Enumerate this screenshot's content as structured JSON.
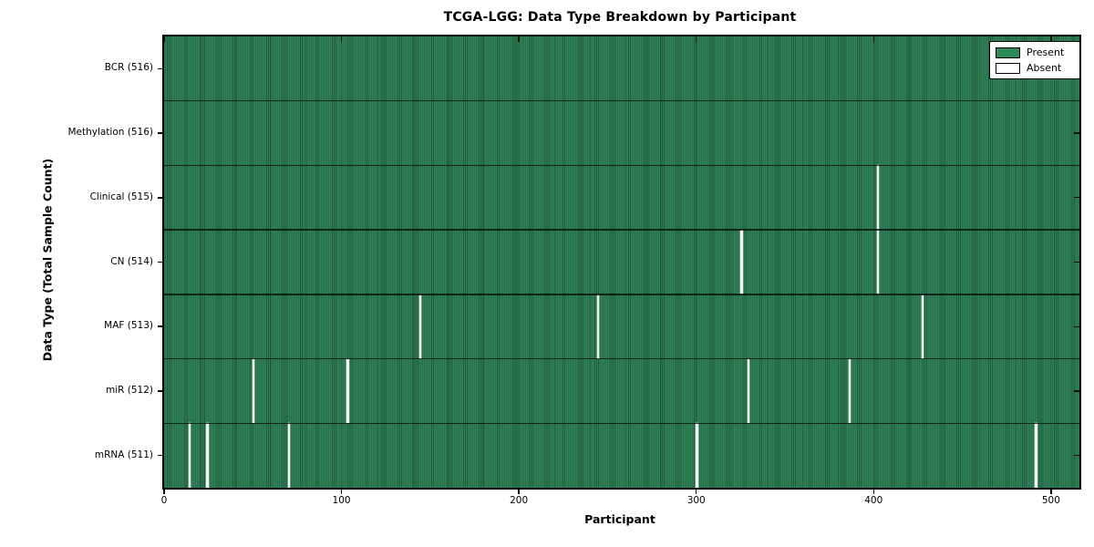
{
  "figure": {
    "background": "#ffffff"
  },
  "chart_data": {
    "type": "heatmap",
    "title": "TCGA-LGG: Data Type Breakdown by Participant",
    "xlabel": "Participant",
    "ylabel": "Data Type (Total Sample Count)",
    "xlim": [
      0,
      516
    ],
    "x_ticks": [
      0,
      100,
      200,
      300,
      400,
      500
    ],
    "n_participants": 516,
    "grid": false,
    "colors": {
      "present": "#2e8b57",
      "present_edge": "#1d5536",
      "absent": "#f4f4f2",
      "axis": "#000000"
    },
    "legend": {
      "position": "upper right",
      "entries": [
        {
          "name": "present",
          "label": "Present",
          "color": "#2e8b57"
        },
        {
          "name": "absent",
          "label": "Absent",
          "color": "#ffffff"
        }
      ]
    },
    "rows": [
      {
        "label": "BCR (516)",
        "data_type": "BCR",
        "total_samples": 516,
        "absent_participants": []
      },
      {
        "label": "Methylation (516)",
        "data_type": "Methylation",
        "total_samples": 516,
        "absent_participants": []
      },
      {
        "label": "Clinical (515)",
        "data_type": "Clinical",
        "total_samples": 515,
        "absent_participants": [
          402
        ]
      },
      {
        "label": "CN (514)",
        "data_type": "CN",
        "total_samples": 514,
        "absent_participants": [
          325,
          402
        ]
      },
      {
        "label": "MAF (513)",
        "data_type": "MAF",
        "total_samples": 513,
        "absent_participants": [
          144,
          244,
          427
        ]
      },
      {
        "label": "miR (512)",
        "data_type": "miR",
        "total_samples": 512,
        "absent_participants": [
          50,
          103,
          329,
          386
        ]
      },
      {
        "label": "mRNA (511)",
        "data_type": "mRNA",
        "total_samples": 511,
        "absent_participants": [
          14,
          24,
          70,
          300,
          491
        ]
      }
    ]
  }
}
